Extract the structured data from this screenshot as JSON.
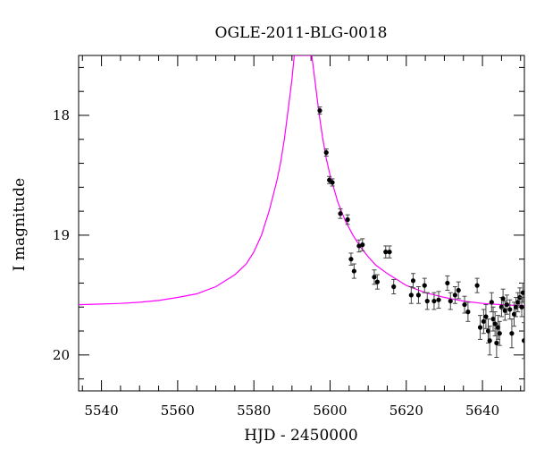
{
  "chart_data": {
    "type": "scatter",
    "title": "OGLE-2011-BLG-0018",
    "xlabel": "HJD - 2450000",
    "ylabel": "I magnitude",
    "xlim": [
      5534,
      5651
    ],
    "ylim": [
      20.3,
      17.5
    ],
    "y_inverted": true,
    "grid": false,
    "xticks": [
      5540,
      5560,
      5580,
      5600,
      5620,
      5640
    ],
    "yticks": [
      18,
      19,
      20
    ],
    "colors": {
      "data": "#000000",
      "model": "#ff00ff",
      "axis": "#000000"
    },
    "series": [
      {
        "kind": "model-curve",
        "points": [
          [
            5534,
            19.58
          ],
          [
            5540,
            19.575
          ],
          [
            5545,
            19.57
          ],
          [
            5550,
            19.56
          ],
          [
            5555,
            19.545
          ],
          [
            5560,
            19.52
          ],
          [
            5565,
            19.49
          ],
          [
            5570,
            19.43
          ],
          [
            5575,
            19.33
          ],
          [
            5578,
            19.24
          ],
          [
            5580,
            19.14
          ],
          [
            5582,
            19.0
          ],
          [
            5584,
            18.8
          ],
          [
            5586,
            18.55
          ],
          [
            5587,
            18.4
          ],
          [
            5588,
            18.2
          ],
          [
            5589,
            17.95
          ],
          [
            5590,
            17.7
          ],
          [
            5590.6,
            17.5
          ],
          [
            5595.2,
            17.5
          ],
          [
            5596,
            17.7
          ],
          [
            5597,
            17.96
          ],
          [
            5598,
            18.18
          ],
          [
            5599,
            18.36
          ],
          [
            5600,
            18.5
          ],
          [
            5602,
            18.72
          ],
          [
            5604,
            18.88
          ],
          [
            5606,
            19.0
          ],
          [
            5608,
            19.1
          ],
          [
            5610,
            19.18
          ],
          [
            5612,
            19.25
          ],
          [
            5615,
            19.32
          ],
          [
            5618,
            19.38
          ],
          [
            5620,
            19.42
          ],
          [
            5625,
            19.48
          ],
          [
            5630,
            19.52
          ],
          [
            5635,
            19.55
          ],
          [
            5640,
            19.57
          ],
          [
            5645,
            19.58
          ],
          [
            5651,
            19.59
          ]
        ]
      },
      {
        "kind": "observations",
        "points": [
          [
            5597.3,
            17.96,
            0.03
          ],
          [
            5599.0,
            18.31,
            0.03
          ],
          [
            5599.8,
            18.54,
            0.03
          ],
          [
            5600.6,
            18.56,
            0.03
          ],
          [
            5602.7,
            18.82,
            0.04
          ],
          [
            5604.6,
            18.87,
            0.04
          ],
          [
            5605.5,
            19.2,
            0.05
          ],
          [
            5606.3,
            19.3,
            0.06
          ],
          [
            5607.6,
            19.09,
            0.05
          ],
          [
            5608.5,
            19.08,
            0.05
          ],
          [
            5611.6,
            19.35,
            0.06
          ],
          [
            5612.4,
            19.39,
            0.06
          ],
          [
            5614.6,
            19.14,
            0.05
          ],
          [
            5615.6,
            19.14,
            0.05
          ],
          [
            5616.7,
            19.43,
            0.06
          ],
          [
            5621.3,
            19.5,
            0.07
          ],
          [
            5621.8,
            19.38,
            0.06
          ],
          [
            5623.2,
            19.5,
            0.07
          ],
          [
            5624.8,
            19.42,
            0.06
          ],
          [
            5625.5,
            19.55,
            0.07
          ],
          [
            5627.3,
            19.55,
            0.07
          ],
          [
            5628.5,
            19.54,
            0.07
          ],
          [
            5630.8,
            19.4,
            0.06
          ],
          [
            5631.6,
            19.55,
            0.07
          ],
          [
            5632.8,
            19.5,
            0.07
          ],
          [
            5633.7,
            19.46,
            0.07
          ],
          [
            5635.3,
            19.58,
            0.07
          ],
          [
            5636.2,
            19.64,
            0.08
          ],
          [
            5638.6,
            19.42,
            0.06
          ],
          [
            5639.4,
            19.77,
            0.1
          ],
          [
            5640.3,
            19.72,
            0.1
          ],
          [
            5640.9,
            19.68,
            0.1
          ],
          [
            5641.5,
            19.8,
            0.1
          ],
          [
            5641.9,
            19.88,
            0.12
          ],
          [
            5642.4,
            19.56,
            0.08
          ],
          [
            5642.8,
            19.7,
            0.1
          ],
          [
            5643.3,
            19.74,
            0.1
          ],
          [
            5643.7,
            19.9,
            0.12
          ],
          [
            5644.1,
            19.77,
            0.1
          ],
          [
            5644.5,
            19.82,
            0.1
          ],
          [
            5645.0,
            19.6,
            0.08
          ],
          [
            5645.4,
            19.53,
            0.08
          ],
          [
            5645.9,
            19.63,
            0.08
          ],
          [
            5646.4,
            19.58,
            0.08
          ],
          [
            5647.2,
            19.62,
            0.08
          ],
          [
            5647.7,
            19.82,
            0.12
          ],
          [
            5648.3,
            19.66,
            0.1
          ],
          [
            5648.8,
            19.6,
            0.08
          ],
          [
            5649.3,
            19.56,
            0.08
          ],
          [
            5649.8,
            19.52,
            0.08
          ],
          [
            5650.3,
            19.6,
            0.08
          ],
          [
            5650.6,
            19.48,
            0.08
          ],
          [
            5650.9,
            19.88,
            0.15
          ]
        ]
      }
    ]
  }
}
